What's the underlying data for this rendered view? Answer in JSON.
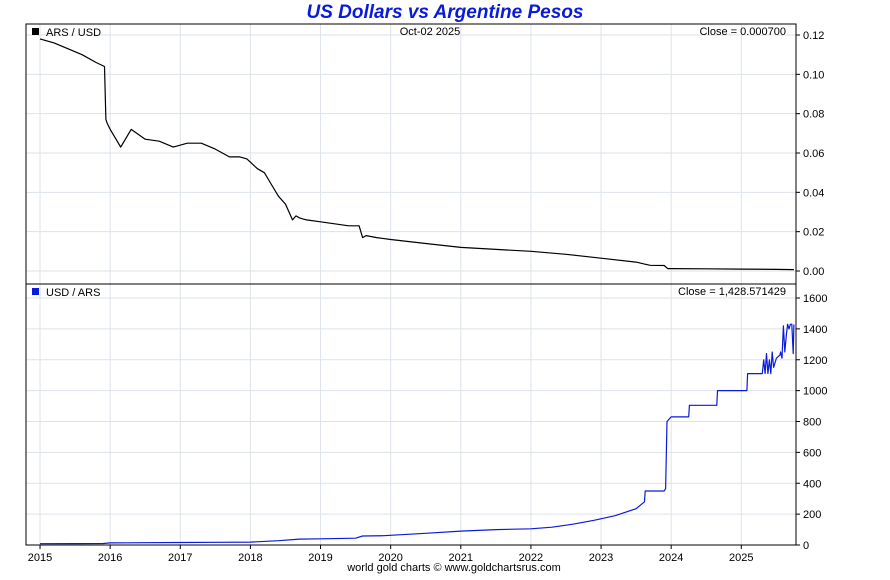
{
  "title": "US Dollars vs Argentine Pesos",
  "footer": "world gold charts © www.goldchartsrus.com",
  "date_label": "Oct-02  2025",
  "chart_data": [
    {
      "type": "line",
      "legend": "ARS / USD",
      "close_label": "Close = 0.000700",
      "color": "#000000",
      "ylim": [
        0,
        0.12
      ],
      "yticks": [
        "0.00",
        "0.02",
        "0.04",
        "0.06",
        "0.08",
        "0.10",
        "0.12"
      ],
      "grid": true,
      "series": [
        {
          "x": [
            2015.0,
            2015.2,
            2015.4,
            2015.6,
            2015.8,
            2015.92,
            2015.94,
            2015.96,
            2016.0,
            2016.15,
            2016.3,
            2016.5,
            2016.7,
            2016.9,
            2017.1,
            2017.3,
            2017.5,
            2017.7,
            2017.85,
            2017.95,
            2018.1,
            2018.2,
            2018.3,
            2018.4,
            2018.5,
            2018.6,
            2018.65,
            2018.7,
            2018.8,
            2019.0,
            2019.2,
            2019.4,
            2019.55,
            2019.6,
            2019.65,
            2019.8,
            2020.0,
            2020.5,
            2021.0,
            2021.5,
            2022.0,
            2022.5,
            2023.0,
            2023.5,
            2023.62,
            2023.7,
            2023.9,
            2023.95,
            2024.0,
            2024.5,
            2025.0,
            2025.5,
            2025.75
          ],
          "y": [
            0.118,
            0.116,
            0.113,
            0.11,
            0.106,
            0.104,
            0.077,
            0.075,
            0.072,
            0.063,
            0.072,
            0.067,
            0.066,
            0.063,
            0.065,
            0.065,
            0.062,
            0.058,
            0.058,
            0.057,
            0.052,
            0.05,
            0.044,
            0.038,
            0.034,
            0.026,
            0.028,
            0.027,
            0.026,
            0.025,
            0.024,
            0.023,
            0.023,
            0.017,
            0.018,
            0.017,
            0.016,
            0.014,
            0.012,
            0.011,
            0.01,
            0.0085,
            0.0065,
            0.0045,
            0.0035,
            0.0029,
            0.0028,
            0.0012,
            0.0012,
            0.0011,
            0.00095,
            0.0008,
            0.0007
          ]
        }
      ]
    },
    {
      "type": "line",
      "legend": "USD / ARS",
      "close_label": "Close = 1,428.571429",
      "color": "#0a1adc",
      "ylim": [
        0,
        1600
      ],
      "yticks": [
        "0",
        "200",
        "400",
        "600",
        "800",
        "1000",
        "1200",
        "1400",
        "1600"
      ],
      "grid": true,
      "series": [
        {
          "x": [
            2015.0,
            2015.5,
            2015.9,
            2016.0,
            2016.5,
            2017.0,
            2017.5,
            2018.0,
            2018.4,
            2018.7,
            2019.0,
            2019.5,
            2019.6,
            2019.9,
            2020.5,
            2021.0,
            2021.5,
            2022.0,
            2022.3,
            2022.6,
            2022.9,
            2023.2,
            2023.5,
            2023.62,
            2023.63,
            2023.9,
            2023.92,
            2023.94,
            2024.0,
            2024.25,
            2024.26,
            2024.65,
            2024.66,
            2025.08,
            2025.09,
            2025.3,
            2025.32,
            2025.34,
            2025.36,
            2025.38,
            2025.4,
            2025.42,
            2025.44,
            2025.46,
            2025.5,
            2025.55,
            2025.56,
            2025.58,
            2025.6,
            2025.62,
            2025.64,
            2025.66,
            2025.68,
            2025.7,
            2025.72,
            2025.74,
            2025.75
          ],
          "y": [
            8.5,
            9.2,
            9.7,
            13.5,
            15,
            16,
            17.5,
            19,
            28,
            38,
            40,
            44,
            58,
            60,
            76,
            90,
            100,
            105,
            115,
            135,
            160,
            190,
            235,
            280,
            350,
            350,
            365,
            800,
            830,
            830,
            905,
            905,
            1000,
            1000,
            1110,
            1110,
            1200,
            1110,
            1240,
            1110,
            1200,
            1110,
            1250,
            1150,
            1210,
            1230,
            1250,
            1210,
            1420,
            1250,
            1350,
            1430,
            1400,
            1430,
            1430,
            1240,
            1428.57
          ]
        }
      ]
    }
  ],
  "x_ticks": [
    "2015",
    "2016",
    "2017",
    "2018",
    "2019",
    "2020",
    "2021",
    "2022",
    "2023",
    "2024",
    "2025"
  ],
  "x_range": [
    2014.8,
    2025.78
  ]
}
